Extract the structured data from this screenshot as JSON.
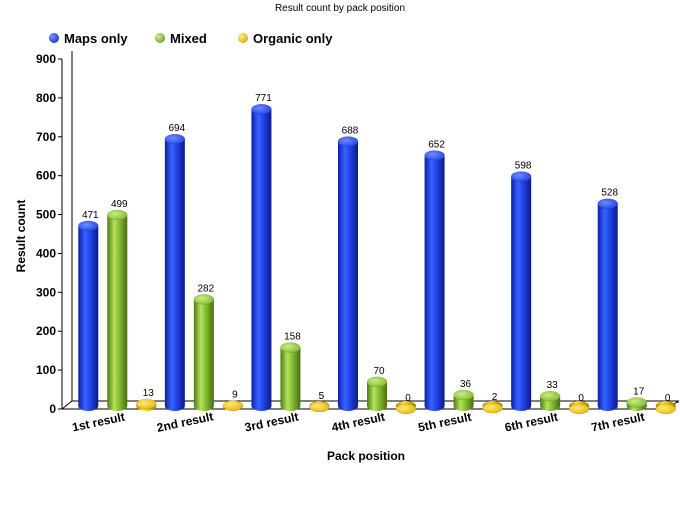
{
  "chart_data": {
    "type": "bar",
    "title": "Result count by pack position",
    "xlabel": "Pack position",
    "ylabel": "Result count",
    "ylim": [
      0,
      900
    ],
    "yticks": [
      0,
      100,
      200,
      300,
      400,
      500,
      600,
      700,
      800,
      900
    ],
    "grid": false,
    "legend_position": "top-left",
    "categories": [
      "1st result",
      "2nd result",
      "3rd result",
      "4th result",
      "5th result",
      "6th result",
      "7th result"
    ],
    "series": [
      {
        "name": "Maps only",
        "color": "#1f3fe0",
        "values": [
          471,
          694,
          771,
          688,
          652,
          598,
          528
        ]
      },
      {
        "name": "Mixed",
        "color": "#8cc43a",
        "values": [
          499,
          282,
          158,
          70,
          36,
          33,
          17
        ]
      },
      {
        "name": "Organic only",
        "color": "#f0c400",
        "values": [
          13,
          9,
          5,
          0,
          2,
          0,
          0
        ]
      }
    ]
  }
}
